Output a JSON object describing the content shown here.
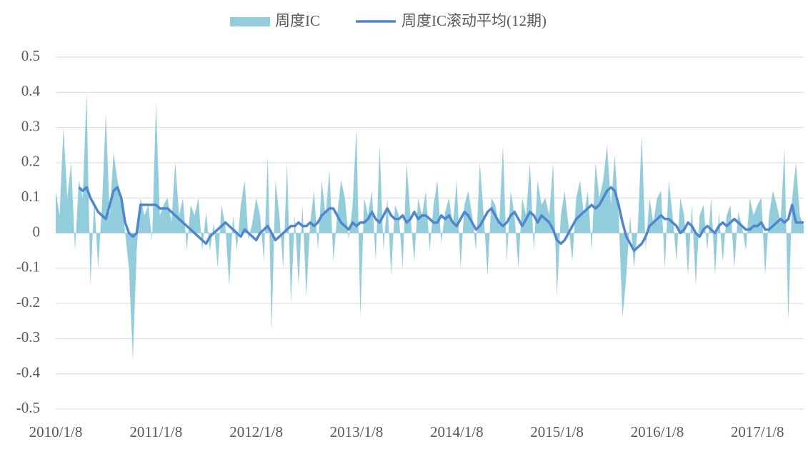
{
  "chart_data": {
    "type": "area-line",
    "categories": [
      "2010/1/8",
      null,
      null,
      null,
      null,
      null,
      null,
      null,
      null,
      null,
      null,
      null,
      null,
      null,
      null,
      null,
      null,
      null,
      null,
      null,
      null,
      null,
      null,
      null,
      null,
      null,
      "2011/1/8",
      null,
      null,
      null,
      null,
      null,
      null,
      null,
      null,
      null,
      null,
      null,
      null,
      null,
      null,
      null,
      null,
      null,
      null,
      null,
      null,
      null,
      null,
      null,
      null,
      null,
      "2012/1/8",
      null,
      null,
      null,
      null,
      null,
      null,
      null,
      null,
      null,
      null,
      null,
      null,
      null,
      null,
      null,
      null,
      null,
      null,
      null,
      null,
      null,
      null,
      null,
      null,
      null,
      "2013/1/8",
      null,
      null,
      null,
      null,
      null,
      null,
      null,
      null,
      null,
      null,
      null,
      null,
      null,
      null,
      null,
      null,
      null,
      null,
      null,
      null,
      null,
      null,
      null,
      null,
      null,
      "2014/1/8",
      null,
      null,
      null,
      null,
      null,
      null,
      null,
      null,
      null,
      null,
      null,
      null,
      null,
      null,
      null,
      null,
      null,
      null,
      null,
      null,
      null,
      null,
      null,
      null,
      null,
      "2015/1/8",
      null,
      null,
      null,
      null,
      null,
      null,
      null,
      null,
      null,
      null,
      null,
      null,
      null,
      null,
      null,
      null,
      null,
      null,
      null,
      null,
      null,
      null,
      null,
      null,
      null,
      "2016/1/8",
      null,
      null,
      null,
      null,
      null,
      null,
      null,
      null,
      null,
      null,
      null,
      null,
      null,
      null,
      null,
      null,
      null,
      null,
      null,
      null,
      null,
      null,
      null,
      null,
      null,
      "2017/1/8",
      null,
      null,
      null,
      null,
      null,
      null,
      null,
      null,
      null,
      null,
      null,
      null
    ],
    "series": [
      {
        "name": "周度IC",
        "kind": "area",
        "color": "#92cddc",
        "values": [
          0.12,
          0.05,
          0.3,
          0.1,
          0.2,
          -0.05,
          0.15,
          0.1,
          0.4,
          -0.15,
          0.1,
          -0.1,
          0.08,
          0.34,
          0.05,
          0.23,
          0.15,
          0.1,
          0,
          -0.1,
          -0.36,
          -0.05,
          0.1,
          0.05,
          0.08,
          -0.02,
          0.37,
          0.05,
          0.08,
          0.1,
          0.03,
          0.2,
          0.05,
          0.1,
          -0.05,
          0.08,
          0.05,
          0.1,
          -0.05,
          0.06,
          -0.05,
          0.03,
          -0.1,
          0.08,
          0.02,
          -0.15,
          0.05,
          -0.05,
          0.08,
          0.15,
          -0.02,
          0.03,
          0.1,
          0.05,
          -0.08,
          0.22,
          -0.28,
          0.15,
          0.05,
          -0.1,
          0.2,
          -0.2,
          0.05,
          -0.15,
          0.08,
          -0.18,
          0.03,
          0.12,
          -0.05,
          0.15,
          0.05,
          0.18,
          -0.08,
          0.05,
          0.15,
          0.1,
          -0.02,
          0.08,
          0.3,
          -0.24,
          0.1,
          0.05,
          0.12,
          -0.08,
          0.25,
          -0.05,
          0.1,
          -0.12,
          0.08,
          0.05,
          -0.1,
          0.2,
          0.05,
          -0.08,
          0.1,
          0.05,
          0.12,
          -0.05,
          0.08,
          0.15,
          -0.03,
          0.06,
          0.1,
          0.02,
          0.15,
          -0.1,
          0.08,
          0.12,
          0.05,
          -0.05,
          0.2,
          0.05,
          -0.12,
          0.1,
          0.08,
          0.02,
          0.25,
          -0.08,
          0.12,
          0.05,
          -0.1,
          0.1,
          0.05,
          0.2,
          -0.05,
          0.15,
          0.08,
          0.1,
          0.05,
          0.2,
          -0.18,
          0.05,
          0.12,
          0.02,
          -0.08,
          0.1,
          0.15,
          0.05,
          0.12,
          -0.05,
          0.2,
          0.1,
          0.15,
          0.25,
          0.08,
          0.22,
          0.05,
          -0.24,
          -0.12,
          0.05,
          -0.1,
          0.02,
          0.28,
          -0.05,
          0.1,
          0.03,
          0.1,
          0.12,
          -0.1,
          0.15,
          0.05,
          -0.08,
          0.1,
          0.05,
          -0.12,
          0.08,
          -0.15,
          0.05,
          0.08,
          -0.05,
          0.1,
          -0.12,
          0.06,
          -0.08,
          0.05,
          0.08,
          -0.1,
          0.06,
          0.02,
          -0.05,
          0.1,
          0.05,
          0.08,
          0.1,
          -0.12,
          0.05,
          0.12,
          0.08,
          0.03,
          0.24,
          -0.25,
          0.1,
          0.2,
          0.05,
          0.02
        ]
      },
      {
        "name": "周度IC滚动平均(12期)",
        "kind": "line",
        "color": "#4f86d0",
        "values": [
          null,
          null,
          null,
          null,
          null,
          null,
          0.13,
          0.12,
          0.13,
          0.1,
          0.08,
          0.06,
          0.05,
          0.04,
          0.08,
          0.12,
          0.13,
          0.1,
          0.03,
          0.0,
          -0.01,
          0.0,
          0.08,
          0.08,
          0.08,
          0.08,
          0.08,
          0.07,
          0.07,
          0.07,
          0.06,
          0.05,
          0.04,
          0.03,
          0.02,
          0.01,
          0.0,
          -0.01,
          -0.02,
          -0.03,
          -0.01,
          0.0,
          0.01,
          0.02,
          0.03,
          0.02,
          0.01,
          0.0,
          -0.01,
          0.01,
          0.0,
          -0.01,
          -0.02,
          0.0,
          0.01,
          0.02,
          0.0,
          -0.02,
          -0.01,
          0.0,
          0.01,
          0.02,
          0.02,
          0.03,
          0.02,
          0.02,
          0.03,
          0.02,
          0.03,
          0.05,
          0.06,
          0.07,
          0.07,
          0.05,
          0.03,
          0.02,
          0.01,
          0.03,
          0.02,
          0.03,
          0.03,
          0.04,
          0.06,
          0.04,
          0.03,
          0.05,
          0.07,
          0.05,
          0.04,
          0.04,
          0.05,
          0.03,
          0.04,
          0.06,
          0.04,
          0.05,
          0.05,
          0.04,
          0.03,
          0.03,
          0.05,
          0.04,
          0.05,
          0.03,
          0.02,
          0.04,
          0.06,
          0.05,
          0.03,
          0.01,
          0.02,
          0.04,
          0.06,
          0.07,
          0.05,
          0.03,
          0.02,
          0.03,
          0.05,
          0.06,
          0.04,
          0.02,
          0.04,
          0.06,
          0.05,
          0.03,
          0.05,
          0.04,
          0.03,
          0.01,
          -0.02,
          -0.03,
          -0.02,
          0.0,
          0.02,
          0.04,
          0.05,
          0.06,
          0.07,
          0.08,
          0.07,
          0.08,
          0.1,
          0.12,
          0.13,
          0.12,
          0.08,
          0.03,
          -0.01,
          -0.03,
          -0.05,
          -0.04,
          -0.03,
          -0.01,
          0.02,
          0.03,
          0.04,
          0.05,
          0.04,
          0.04,
          0.03,
          0.02,
          0.0,
          0.01,
          0.03,
          0.02,
          0.0,
          -0.01,
          0.01,
          0.02,
          0.01,
          0.0,
          0.02,
          0.03,
          0.02,
          0.03,
          0.04,
          0.03,
          0.02,
          0.01,
          0.01,
          0.02,
          0.02,
          0.03,
          0.01,
          0.01,
          0.02,
          0.03,
          0.04,
          0.03,
          0.04,
          0.08,
          0.03,
          0.03,
          0.03
        ]
      }
    ],
    "ylim": [
      -0.5,
      0.5
    ],
    "yticks": [
      -0.5,
      -0.4,
      -0.3,
      -0.2,
      -0.1,
      0,
      0.1,
      0.2,
      0.3,
      0.4,
      0.5
    ],
    "grid": true,
    "legend": "top"
  }
}
